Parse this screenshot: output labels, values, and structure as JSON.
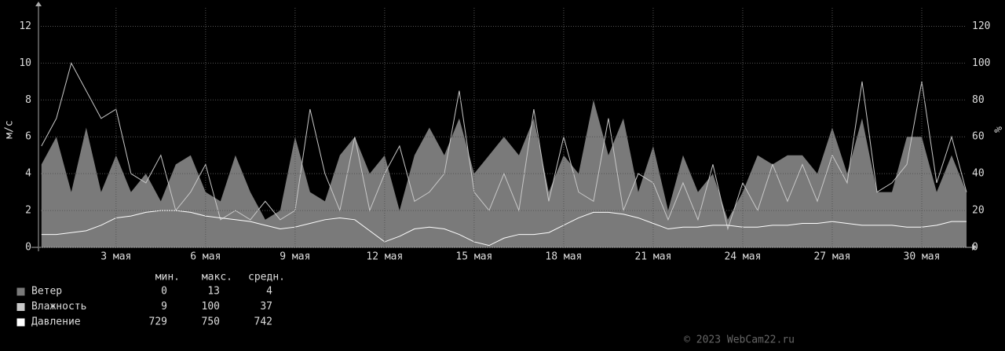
{
  "chart_data": {
    "type": "area-line",
    "y_label": "м/с",
    "y2_label": "%",
    "x": [
      0.5,
      1,
      1.5,
      2,
      2.5,
      3,
      3.5,
      4,
      4.5,
      5,
      5.5,
      6,
      6.5,
      7,
      7.5,
      8,
      8.5,
      9,
      9.5,
      10,
      10.5,
      11,
      11.5,
      12,
      12.5,
      13,
      13.5,
      14,
      14.5,
      15,
      15.5,
      16,
      16.5,
      17,
      17.5,
      18,
      18.5,
      19,
      19.5,
      20,
      20.5,
      21,
      21.5,
      22,
      22.5,
      23,
      23.5,
      24,
      24.5,
      25,
      25.5,
      26,
      26.5,
      27,
      27.5,
      28,
      28.5,
      29,
      29.5,
      30,
      30.5,
      31,
      31.5
    ],
    "xlim": [
      0.4,
      31.5
    ],
    "xticks": [
      {
        "value": 3,
        "label": "3 мая"
      },
      {
        "value": 6,
        "label": "6 мая"
      },
      {
        "value": 9,
        "label": "9 мая"
      },
      {
        "value": 12,
        "label": "12 мая"
      },
      {
        "value": 15,
        "label": "15 мая"
      },
      {
        "value": 18,
        "label": "18 мая"
      },
      {
        "value": 21,
        "label": "21 мая"
      },
      {
        "value": 24,
        "label": "24 мая"
      },
      {
        "value": 27,
        "label": "27 мая"
      },
      {
        "value": 30,
        "label": "30 мая"
      }
    ],
    "ylim": [
      0,
      13
    ],
    "yticks": [
      0,
      2,
      4,
      6,
      8,
      10,
      12
    ],
    "y2lim": [
      0,
      130
    ],
    "y2ticks": [
      0,
      20,
      40,
      60,
      80,
      100,
      120
    ],
    "grid": true,
    "stats_headers": [
      "мин.",
      "макс.",
      "средн."
    ],
    "series": [
      {
        "name": "Ветер",
        "color": "#7a7a7a",
        "kind": "area",
        "stats": [
          0,
          13,
          4
        ],
        "values": [
          4.5,
          6,
          3,
          6.5,
          3,
          5,
          3,
          4,
          2.5,
          4.5,
          5,
          3,
          2.5,
          5,
          3,
          1.5,
          2,
          6,
          3,
          2.5,
          5,
          6,
          4,
          5,
          2,
          5,
          6.5,
          5,
          7,
          4,
          5,
          6,
          5,
          7,
          3,
          5,
          4,
          8,
          5,
          7,
          3,
          5.5,
          2,
          5,
          3,
          4,
          1.5,
          3,
          5,
          4.5,
          5,
          5,
          4,
          6.5,
          4,
          7,
          3,
          3,
          6,
          6,
          3,
          5,
          3
        ]
      },
      {
        "name": "Влажность",
        "color": "#c8c8c8",
        "kind": "line",
        "axis": "y2",
        "stats": [
          9,
          100,
          37
        ],
        "values": [
          55,
          70,
          100,
          85,
          70,
          75,
          40,
          35,
          50,
          20,
          30,
          45,
          15,
          20,
          15,
          25,
          15,
          20,
          75,
          40,
          20,
          60,
          20,
          40,
          55,
          25,
          30,
          40,
          85,
          30,
          20,
          40,
          20,
          75,
          25,
          60,
          30,
          25,
          70,
          20,
          40,
          35,
          15,
          35,
          15,
          45,
          10,
          35,
          20,
          45,
          25,
          45,
          25,
          50,
          35,
          90,
          30,
          35,
          45,
          90,
          35,
          60,
          30
        ]
      },
      {
        "name": "Давление",
        "color": "#ffffff",
        "kind": "line",
        "axis": "y2",
        "stats": [
          729,
          750,
          742
        ],
        "values": [
          7,
          7,
          8,
          9,
          12,
          16,
          17,
          19,
          20,
          20,
          19,
          17,
          16,
          15,
          14,
          12,
          10,
          11,
          13,
          15,
          16,
          15,
          9,
          3,
          6,
          10,
          11,
          10,
          7,
          3,
          1,
          5,
          7,
          7,
          8,
          12,
          16,
          19,
          19,
          18,
          16,
          13,
          10,
          11,
          11,
          12,
          12,
          11,
          11,
          12,
          12,
          13,
          13,
          14,
          13,
          12,
          12,
          12,
          11,
          11,
          12,
          14,
          14
        ]
      }
    ],
    "footer": "© 2023 WebCam22.ru"
  }
}
